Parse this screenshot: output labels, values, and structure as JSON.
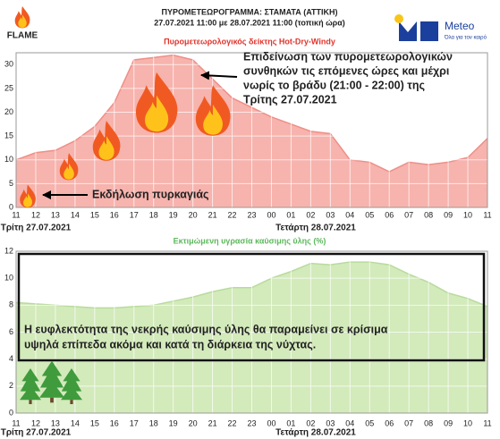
{
  "header": {
    "title": "ΠΥΡΟΜΕΤΕΩΡΟΓΡΑΜΜΑ: ΣΤΑΜΑΤΑ (ΑΤΤΙΚΗ)",
    "subtitle": "27.07.2021 11:00 με 28.07.2021 11:00 (τοπική ώρα)",
    "logo_left": "FLAME",
    "logo_right": "Meteo",
    "logo_right_tagline": "Όλα για τον καιρό"
  },
  "chart_data": [
    {
      "type": "area",
      "title": "Πυρομετεωρολογικός δείκτης Hot-Dry-Windy",
      "color": "#f7b3ad",
      "line_color": "#ee8f88",
      "title_color": "#e0342c",
      "categories": [
        "11",
        "12",
        "13",
        "14",
        "15",
        "16",
        "17",
        "18",
        "19",
        "20",
        "21",
        "22",
        "23",
        "00",
        "01",
        "02",
        "03",
        "04",
        "05",
        "06",
        "07",
        "08",
        "09",
        "10",
        "11"
      ],
      "values": [
        10,
        11.5,
        12,
        14,
        17,
        22,
        31,
        31.5,
        32,
        31,
        27,
        23,
        21,
        19,
        17.5,
        16,
        15.5,
        10,
        9.5,
        7.5,
        9.5,
        9,
        9.5,
        10.5,
        14.5
      ],
      "ylim": [
        0,
        32.5
      ],
      "yticks": [
        0,
        5,
        10,
        15,
        20,
        25,
        30
      ],
      "grid": true,
      "date_labels": [
        "Τρίτη 27.07.2021",
        "Τετάρτη 28.07.2021"
      ],
      "annotations": [
        {
          "lines": [
            "Επιδείνωση των πυρομετεωρολογικών",
            "συνθηκών τις επόμενες ώρες και μέχρι",
            "νωρίς το βράδυ (21:00 - 22:00) της",
            "Τρίτης 27.07.2021"
          ]
        },
        {
          "lines": [
            "Εκδήλωση πυρκαγιάς"
          ]
        }
      ]
    },
    {
      "type": "area",
      "title": "Εκτιμώμενη υγρασία καύσιμης ύλης (%)",
      "color": "#d3eabb",
      "line_color": "#b9db9c",
      "title_color": "#5cb85c",
      "categories": [
        "11",
        "12",
        "13",
        "14",
        "15",
        "16",
        "17",
        "18",
        "19",
        "20",
        "21",
        "22",
        "23",
        "00",
        "01",
        "02",
        "03",
        "04",
        "05",
        "06",
        "07",
        "08",
        "09",
        "10",
        "11"
      ],
      "values": [
        8.2,
        8.1,
        8,
        7.9,
        7.8,
        7.8,
        7.9,
        8,
        8.3,
        8.6,
        9,
        9.3,
        9.3,
        10,
        10.5,
        11.1,
        11,
        11.2,
        11.2,
        11,
        10.3,
        9.7,
        8.9,
        8.5,
        7.9
      ],
      "ylim": [
        0,
        12
      ],
      "yticks": [
        0,
        2,
        4,
        6,
        8,
        10,
        12
      ],
      "grid": true,
      "date_labels": [
        "Τρίτη 27.07.2021",
        "Τετάρτη 28.07.2021"
      ],
      "annotations": [
        {
          "lines": [
            "Η ευφλεκτότητα της νεκρής καύσιμης ύλης θα παραμείνει σε κρίσιμα",
            "υψηλά επίπεδα ακόμα και κατά τη διάρκεια της νύχτας."
          ]
        }
      ]
    }
  ]
}
